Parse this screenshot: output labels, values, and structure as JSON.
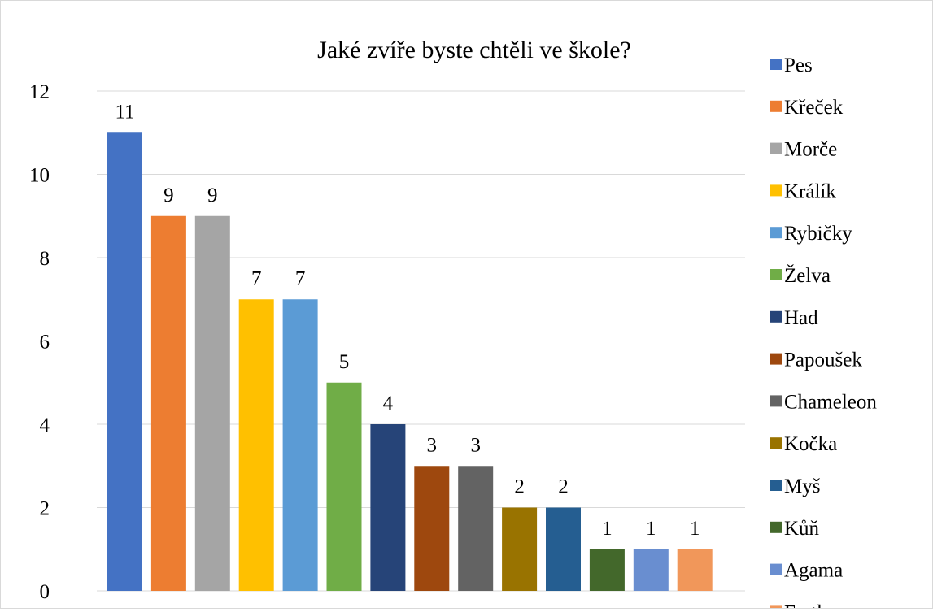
{
  "chart_data": {
    "type": "bar",
    "title": "Jaké zvíře byste chtěli ve škole?",
    "xlabel": "",
    "ylabel": "",
    "ylim": [
      0,
      12
    ],
    "yticks": [
      0,
      2,
      4,
      6,
      8,
      10,
      12
    ],
    "grid": true,
    "legend_position": "right",
    "data_labels": true,
    "series": [
      {
        "name": "Pes",
        "value": 11,
        "color": "#4472C4"
      },
      {
        "name": "Křeček",
        "value": 9,
        "color": "#ED7D31"
      },
      {
        "name": "Morče",
        "value": 9,
        "color": "#A5A5A5"
      },
      {
        "name": "Králík",
        "value": 7,
        "color": "#FFC000"
      },
      {
        "name": "Rybičky",
        "value": 7,
        "color": "#5B9BD5"
      },
      {
        "name": "Želva",
        "value": 5,
        "color": "#70AD47"
      },
      {
        "name": "Had",
        "value": 4,
        "color": "#264478"
      },
      {
        "name": "Papoušek",
        "value": 3,
        "color": "#9E480E"
      },
      {
        "name": "Chameleon",
        "value": 3,
        "color": "#636363"
      },
      {
        "name": "Kočka",
        "value": 2,
        "color": "#997300"
      },
      {
        "name": "Myš",
        "value": 2,
        "color": "#255E91"
      },
      {
        "name": "Kůň",
        "value": 1,
        "color": "#43682B"
      },
      {
        "name": "Agama",
        "value": 1,
        "color": "#698ED0"
      },
      {
        "name": "Fretka",
        "value": 1,
        "color": "#F1975A"
      }
    ]
  }
}
